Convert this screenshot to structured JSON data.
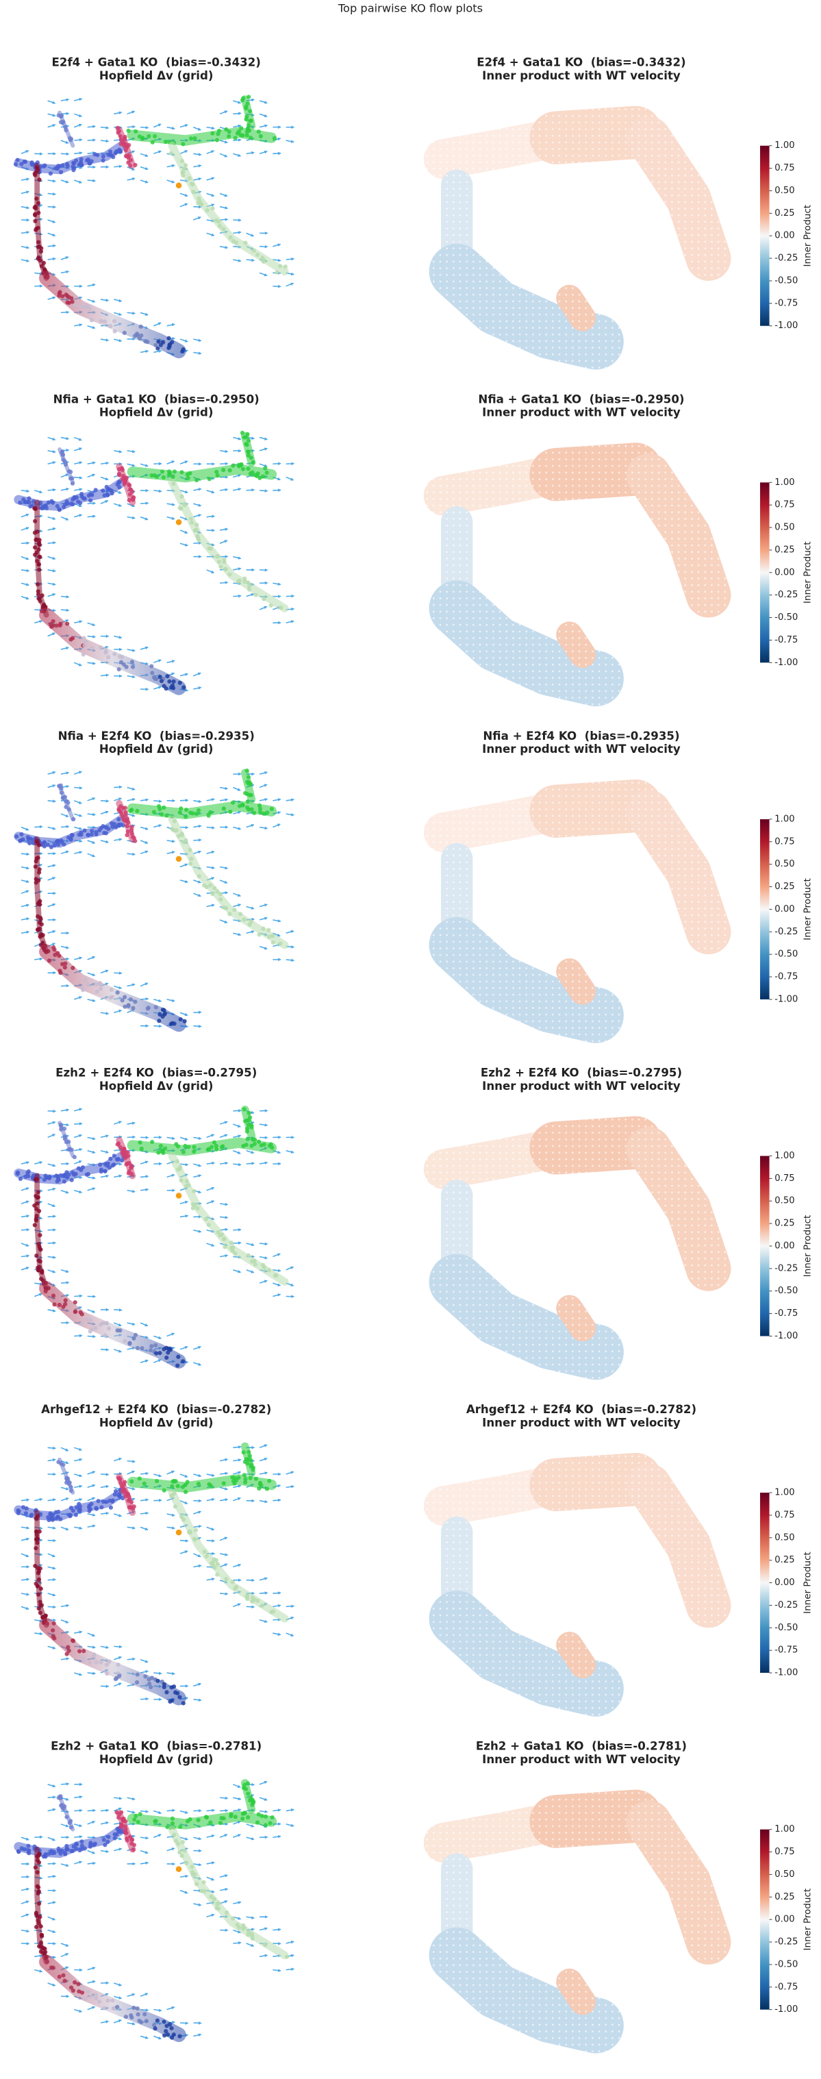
{
  "title": "Top pairwise KO flow plots",
  "chart_data": [
    {
      "type": "flow",
      "title": "E2f4 + Gata1 KO  (bias=-0.3432)",
      "subtitle": "Hopfield Δv (grid)"
    },
    {
      "type": "heatmap",
      "title": "E2f4 + Gata1 KO  (bias=-0.3432)",
      "subtitle": "Inner product with WT velocity",
      "colorbar": {
        "label": "Inner Product",
        "lim": [
          -1,
          1
        ],
        "ticks": [
          {
            "value": 1,
            "label": "1.00"
          },
          0.75,
          {
            "value": 0.5,
            "label": "0.50"
          },
          0.25,
          {
            "value": 0,
            "label": "0.00"
          },
          -0.25,
          {
            "value": -0.5,
            "label": "-0.50"
          },
          -0.75,
          {
            "value": -1,
            "label": "-1.00"
          }
        ]
      }
    },
    {
      "type": "flow",
      "title": "Nfia + Gata1 KO  (bias=-0.2950)",
      "subtitle": "Hopfield Δv (grid)"
    },
    {
      "type": "heatmap",
      "title": "Nfia + Gata1 KO  (bias=-0.2950)",
      "subtitle": "Inner product with WT velocity",
      "colorbar": {
        "label": "Inner Product",
        "lim": [
          -1,
          1
        ],
        "ticks": [
          {
            "value": 1,
            "label": "1.00"
          },
          0.75,
          {
            "value": 0.5,
            "label": "0.50"
          },
          0.25,
          {
            "value": 0,
            "label": "0.00"
          },
          -0.25,
          {
            "value": -0.5,
            "label": "-0.50"
          },
          -0.75,
          {
            "value": -1,
            "label": "-1.00"
          }
        ]
      }
    },
    {
      "type": "flow",
      "title": "Nfia + E2f4 KO  (bias=-0.2935)",
      "subtitle": "Hopfield Δv (grid)"
    },
    {
      "type": "heatmap",
      "title": "Nfia + E2f4 KO  (bias=-0.2935)",
      "subtitle": "Inner product with WT velocity",
      "colorbar": {
        "label": "Inner Product",
        "lim": [
          -1,
          1
        ],
        "ticks": [
          {
            "value": 1,
            "label": "1.00"
          },
          0.75,
          {
            "value": 0.5,
            "label": "0.50"
          },
          0.25,
          {
            "value": 0,
            "label": "0.00"
          },
          -0.25,
          {
            "value": -0.5,
            "label": "-0.50"
          },
          -0.75,
          {
            "value": -1,
            "label": "-1.00"
          }
        ]
      }
    },
    {
      "type": "flow",
      "title": "Ezh2 + E2f4 KO  (bias=-0.2795)",
      "subtitle": "Hopfield Δv (grid)"
    },
    {
      "type": "heatmap",
      "title": "Ezh2 + E2f4 KO  (bias=-0.2795)",
      "subtitle": "Inner product with WT velocity",
      "colorbar": {
        "label": "Inner Product",
        "lim": [
          -1,
          1
        ],
        "ticks": [
          {
            "value": 1,
            "label": "1.00"
          },
          0.75,
          {
            "value": 0.5,
            "label": "0.50"
          },
          0.25,
          {
            "value": 0,
            "label": "0.00"
          },
          -0.25,
          {
            "value": -0.5,
            "label": "-0.50"
          },
          -0.75,
          {
            "value": -1,
            "label": "-1.00"
          }
        ]
      }
    },
    {
      "type": "flow",
      "title": "Arhgef12 + E2f4 KO  (bias=-0.2782)",
      "subtitle": "Hopfield Δv (grid)"
    },
    {
      "type": "heatmap",
      "title": "Arhgef12 + E2f4 KO  (bias=-0.2782)",
      "subtitle": "Inner product with WT velocity",
      "colorbar": {
        "label": "Inner Product",
        "lim": [
          -1,
          1
        ],
        "ticks": [
          {
            "value": 1,
            "label": "1.00"
          },
          0.75,
          {
            "value": 0.5,
            "label": "0.50"
          },
          0.25,
          {
            "value": 0,
            "label": "0.00"
          },
          -0.25,
          {
            "value": -0.5,
            "label": "-0.50"
          },
          -0.75,
          {
            "value": -1,
            "label": "-1.00"
          }
        ]
      }
    },
    {
      "type": "flow",
      "title": "Ezh2 + Gata1 KO  (bias=-0.2781)",
      "subtitle": "Hopfield Δv (grid)"
    },
    {
      "type": "heatmap",
      "title": "Ezh2 + Gata1 KO  (bias=-0.2781)",
      "subtitle": "Inner product with WT velocity",
      "colorbar": {
        "label": "Inner Product",
        "lim": [
          -1,
          1
        ],
        "ticks": [
          {
            "value": 1,
            "label": "1.00"
          },
          0.75,
          {
            "value": 0.5,
            "label": "0.50"
          },
          0.25,
          {
            "value": 0,
            "label": "0.00"
          },
          -0.25,
          {
            "value": -0.5,
            "label": "-0.50"
          },
          -0.75,
          {
            "value": -1,
            "label": "-1.00"
          }
        ]
      }
    }
  ]
}
